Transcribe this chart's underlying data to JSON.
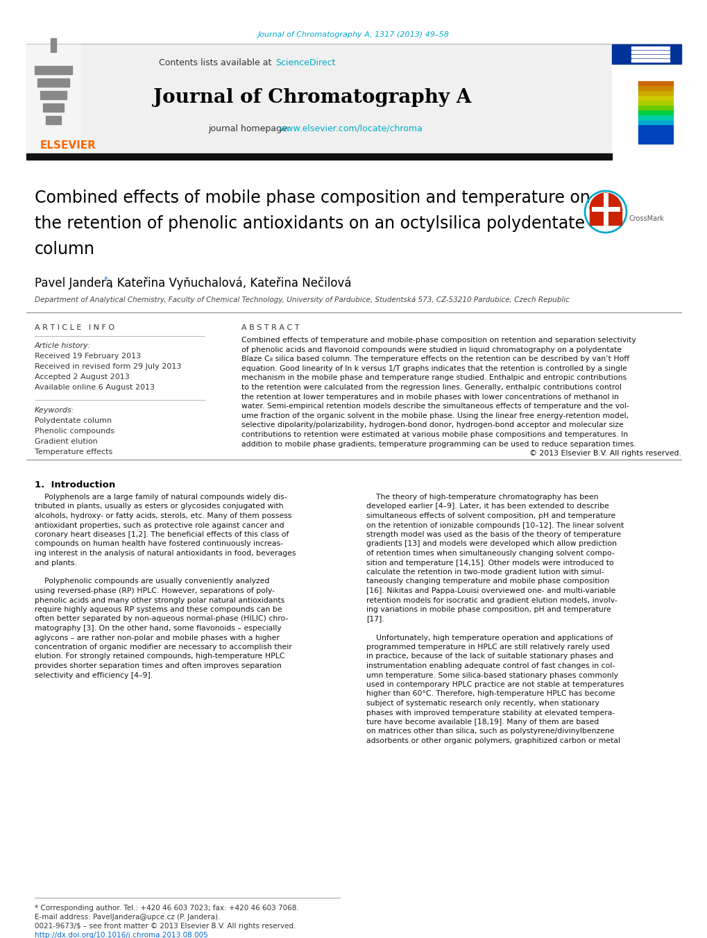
{
  "bg_color": "#ffffff",
  "top_link": "Journal of Chromatography A, 1317 (2013) 49–58",
  "top_link_color": "#00aacc",
  "header_bg": "#f0f0f0",
  "contents_text": "Contents lists available at ",
  "sciencedirect_text": "ScienceDirect",
  "sciencedirect_color": "#00aacc",
  "journal_title": "Journal of Chromatography A",
  "journal_homepage_text": "journal homepage: ",
  "journal_homepage_url": "www.elsevier.com/locate/chroma",
  "journal_homepage_url_color": "#00aacc",
  "elsevier_color": "#ff6600",
  "article_info_title": "A R T I C L E   I N F O",
  "abstract_title": "A B S T R A C T",
  "article_history_title": "Article history:",
  "received": "Received 19 February 2013",
  "revised": "Received in revised form 29 July 2013",
  "accepted": "Accepted 2 August 2013",
  "available": "Available online 6 August 2013",
  "keywords_title": "Keywords:",
  "keywords": [
    "Polydentate column",
    "Phenolic compounds",
    "Gradient elution",
    "Temperature effects"
  ],
  "affiliation": "Department of Analytical Chemistry, Faculty of Chemical Technology, University of Pardubice, Studentská 573, CZ-53210 Pardubice, Czech Republic",
  "copyright": "© 2013 Elsevier B.V. All rights reserved.",
  "footer_star": "* Corresponding author. Tel.: +420 46 603 7023; fax: +420 46 603 7068.",
  "footer_email": "E-mail address: PavelJandera@upce.cz (P. Jandera).",
  "footer_issn": "0021-9673/$ – see front matter © 2013 Elsevier B.V. All rights reserved.",
  "footer_doi": "http://dx.doi.org/10.1016/j.chroma.2013.08.005",
  "footer_doi_color": "#0066cc",
  "ref_color": "#0066cc",
  "abstract_lines": [
    "Combined effects of temperature and mobile-phase composition on retention and separation selectivity",
    "of phenolic acids and flavonoid compounds were studied in liquid chromatography on a polydentate",
    "Blaze C₈ silica based column. The temperature effects on the retention can be described by van’t Hoff",
    "equation. Good linearity of ln k versus 1/T graphs indicates that the retention is controlled by a single",
    "mechanism in the mobile phase and temperature range studied. Enthalpic and entropic contributions",
    "to the retention were calculated from the regression lines. Generally, enthalpic contributions control",
    "the retention at lower temperatures and in mobile phases with lower concentrations of methanol in",
    "water. Semi-empirical retention models describe the simultaneous effects of temperature and the vol-",
    "ume fraction of the organic solvent in the mobile phase. Using the linear free energy-retention model,",
    "selective dipolarity/polarizability, hydrogen-bond donor, hydrogen-bond acceptor and molecular size",
    "contributions to retention were estimated at various mobile phase compositions and temperatures. In",
    "addition to mobile phase gradients, temperature programming can be used to reduce separation times."
  ],
  "intro_left_lines": [
    "    Polyphenols are a large family of natural compounds widely dis-",
    "tributed in plants, usually as esters or glycosides conjugated with",
    "alcohols, hydroxy- or fatty acids, sterols, etc. Many of them possess",
    "antioxidant properties, such as protective role against cancer and",
    "coronary heart diseases [1,2]. The beneficial effects of this class of",
    "compounds on human health have fostered continuously increas-",
    "ing interest in the analysis of natural antioxidants in food, beverages",
    "and plants.",
    "",
    "    Polyphenolic compounds are usually conveniently analyzed",
    "using reversed-phase (RP) HPLC. However, separations of poly-",
    "phenolic acids and many other strongly polar natural antioxidants",
    "require highly aqueous RP systems and these compounds can be",
    "often better separated by non-aqueous normal-phase (HILIC) chro-",
    "matography [3]. On the other hand, some flavonoids – especially",
    "aglycons – are rather non-polar and mobile phases with a higher",
    "concentration of organic modifier are necessary to accomplish their",
    "elution. For strongly retained compounds, high-temperature HPLC",
    "provides shorter separation times and often improves separation",
    "selectivity and efficiency [4–9]."
  ],
  "intro_right_lines": [
    "    The theory of high-temperature chromatography has been",
    "developed earlier [4–9]. Later, it has been extended to describe",
    "simultaneous effects of solvent composition, pH and temperature",
    "on the retention of ionizable compounds [10–12]. The linear solvent",
    "strength model was used as the basis of the theory of temperature",
    "gradients [13] and models were developed which allow prediction",
    "of retention times when simultaneously changing solvent compo-",
    "sition and temperature [14,15]. Other models were introduced to",
    "calculate the retention in two-mode gradient lution with simul-",
    "taneously changing temperature and mobile phase composition",
    "[16]. Nikitas and Pappa-Louisi overviewed one- and multi-variable",
    "retention models for isocratic and gradient elution models, involv-",
    "ing variations in mobile phase composition, pH and temperature",
    "[17].",
    "",
    "    Unfortunately, high temperature operation and applications of",
    "programmed temperature in HPLC are still relatively rarely used",
    "in practice, because of the lack of suitable stationary phases and",
    "instrumentation enabling adequate control of fast changes in col-",
    "umn temperature. Some silica-based stationary phases commonly",
    "used in contemporary HPLC practice are not stable at temperatures",
    "higher than 60°C. Therefore, high-temperature HPLC has become",
    "subject of systematic research only recently, when stationary",
    "phases with improved temperature stability at elevated tempera-",
    "ture have become available [18,19]. Many of them are based",
    "on matrices other than silica, such as polystyrene/divinylbenzene",
    "adsorbents or other organic polymers, graphitized carbon or metal"
  ],
  "cover_stripe_colors": [
    "#0044bb",
    "#0044bb",
    "#0044bb",
    "#0044bb",
    "#00aacc",
    "#00ccaa",
    "#00cc44",
    "#66cc00",
    "#aacc00",
    "#cccc00",
    "#ccaa00",
    "#cc8800",
    "#cc6600"
  ]
}
